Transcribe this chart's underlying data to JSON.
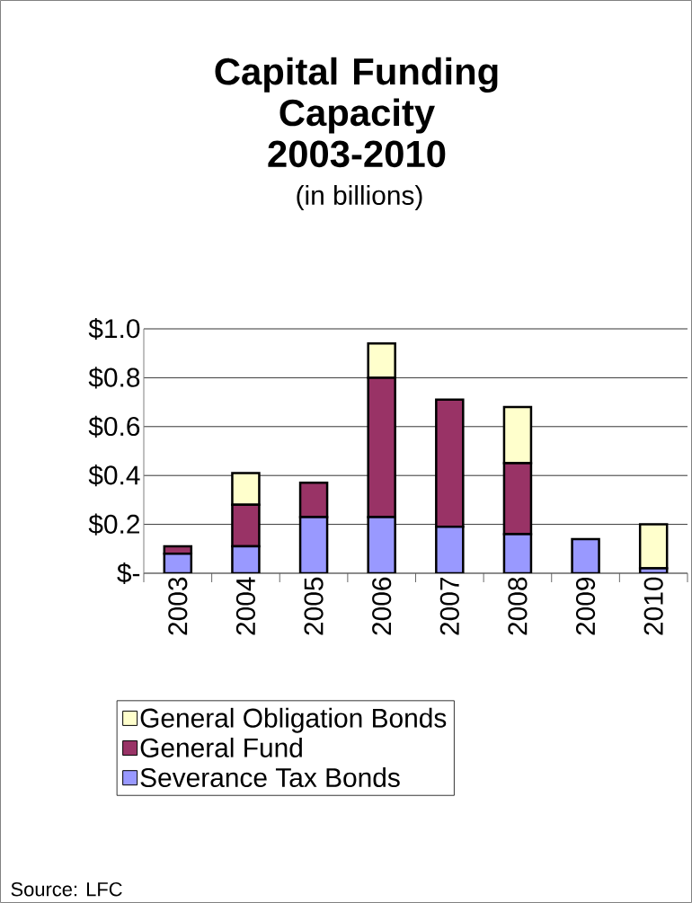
{
  "chart_data": {
    "type": "bar",
    "title": "Capital Funding Capacity 2003-2010",
    "subtitle": "(in billions)",
    "categories": [
      "2003",
      "2004",
      "2005",
      "2006",
      "2007",
      "2008",
      "2009",
      "2010"
    ],
    "stacked": true,
    "series": [
      {
        "name": "Severance Tax Bonds",
        "color": "#9999ff",
        "values": [
          0.08,
          0.11,
          0.23,
          0.23,
          0.19,
          0.16,
          0.14,
          0.02
        ]
      },
      {
        "name": "General Fund",
        "color": "#993366",
        "values": [
          0.03,
          0.17,
          0.14,
          0.57,
          0.52,
          0.29,
          null,
          null
        ]
      },
      {
        "name": "General Obligation Bonds",
        "color": "#ffffcc",
        "values": [
          null,
          0.13,
          null,
          0.14,
          null,
          0.23,
          null,
          0.18
        ]
      }
    ],
    "ylim": [
      0,
      1
    ],
    "yticks": [
      {
        "value": 0,
        "label": "$-"
      },
      {
        "value": 0.2,
        "label": "$0.2"
      },
      {
        "value": 0.4,
        "label": "$0.4"
      },
      {
        "value": 0.6,
        "label": "$0.6"
      },
      {
        "value": 0.8,
        "label": "$0.8"
      },
      {
        "value": 1,
        "label": "$1.0"
      }
    ],
    "grid": "y",
    "legend": "bottom",
    "annotations": [
      "Source: LFC"
    ]
  }
}
